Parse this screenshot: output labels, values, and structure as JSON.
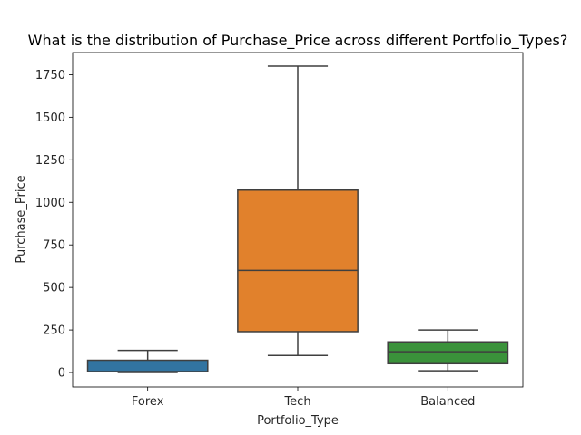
{
  "chart_data": {
    "type": "box",
    "title": "What is the distribution of Purchase_Price across different Portfolio_Types?",
    "xlabel": "Portfolio_Type",
    "ylabel": "Purchase_Price",
    "ylim": [
      -85,
      1880
    ],
    "yticks": [
      0,
      250,
      500,
      750,
      1000,
      1250,
      1500,
      1750
    ],
    "grid": false,
    "series": [
      {
        "category": "Forex",
        "color": "#3274a1",
        "min": 0,
        "q1": 5,
        "median": 5,
        "q3": 72,
        "max": 130
      },
      {
        "category": "Tech",
        "color": "#e1812c",
        "min": 100,
        "q1": 240,
        "median": 600,
        "q3": 1072,
        "max": 1800
      },
      {
        "category": "Balanced",
        "color": "#3a923a",
        "min": 10,
        "q1": 52,
        "median": 122,
        "q3": 180,
        "max": 250
      }
    ]
  }
}
